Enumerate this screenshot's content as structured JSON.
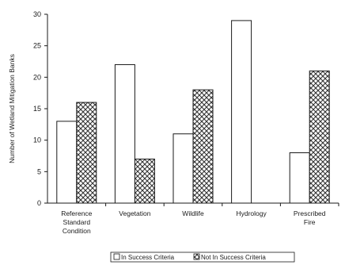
{
  "chart_data": {
    "type": "bar",
    "categories": [
      [
        "Reference",
        "Standard",
        "Condition"
      ],
      [
        "Vegetation"
      ],
      [
        "Wildlife"
      ],
      [
        "Hydrology"
      ],
      [
        "Prescribed",
        "Fire"
      ]
    ],
    "series": [
      {
        "name": "In Success Criteria",
        "fill": "plain",
        "values": [
          13,
          22,
          11,
          29,
          8
        ]
      },
      {
        "name": "Not In Success Criteria",
        "fill": "crosshatch",
        "values": [
          16,
          7,
          18,
          0,
          21
        ]
      }
    ],
    "title": "",
    "xlabel": "",
    "ylabel": "Number of Wetland Mitigation Banks",
    "ylim": [
      0,
      30
    ],
    "yticks": [
      0,
      5,
      10,
      15,
      20,
      25,
      30
    ],
    "grid": false,
    "legend": "bottom-center",
    "colors": {
      "stroke": "#1a1a1a",
      "plain_fill": "#ffffff",
      "hatch": "#333333"
    }
  }
}
